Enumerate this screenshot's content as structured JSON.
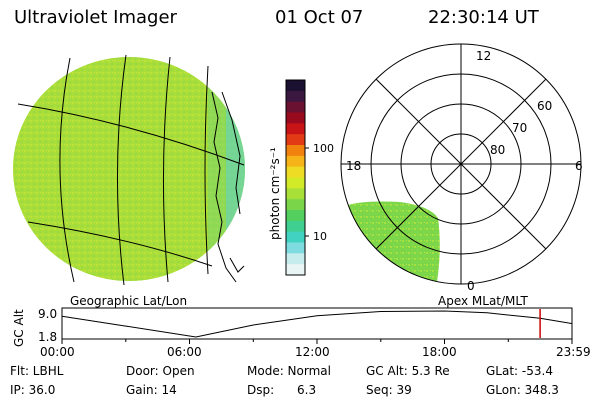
{
  "header": {
    "title": "Ultraviolet Imager",
    "date": "01 Oct 07",
    "time": "22:30:14 UT"
  },
  "colorbar": {
    "unit_label": "photon cm⁻²s⁻¹",
    "tick_labels": [
      "100",
      "10"
    ],
    "colors": [
      "#1a1030",
      "#3b1840",
      "#6a1030",
      "#9a0a1e",
      "#c81416",
      "#e23a14",
      "#f2820e",
      "#f7b418",
      "#eedc24",
      "#d2ea28",
      "#a8e038",
      "#7ad648",
      "#52cf5c",
      "#3fcf90",
      "#42d2c2",
      "#7edce0",
      "#c6ecee",
      "#e9f4f4"
    ]
  },
  "geographic_panel": {
    "label": "Geographic Lat/Lon",
    "emission_color": "#a8dd3a"
  },
  "polar_panel": {
    "label": "Apex  MLat/MLT",
    "mlt_labels": {
      "top": "12",
      "left": "18",
      "right": "6",
      "bottom": "0"
    },
    "lat_labels": [
      "60",
      "70",
      "80"
    ],
    "emission_color": "#7cd64a"
  },
  "orbit_plot": {
    "y_axis_label": "GC Alt",
    "y_ticks": [
      "9.0",
      "1.8"
    ],
    "x_ticks": [
      "00:00",
      "06:00",
      "12:00",
      "18:00",
      "23:59"
    ],
    "current_time_hours": 22.5,
    "marker_color": "#cc0000"
  },
  "info": {
    "row1": {
      "flt": "Flt: LBHL",
      "door": "Door: Open",
      "mode": "Mode: Normal",
      "gc_alt": "GC Alt: 5.3 Re",
      "glat": "GLat: -53.4"
    },
    "row2": {
      "ip": "IP: 36.0",
      "gain": "Gain: 14",
      "dsp_label": "Dsp:",
      "dsp_value": "6.3",
      "seq": "Seq: 39",
      "glon": "GLon: 348.3"
    }
  }
}
